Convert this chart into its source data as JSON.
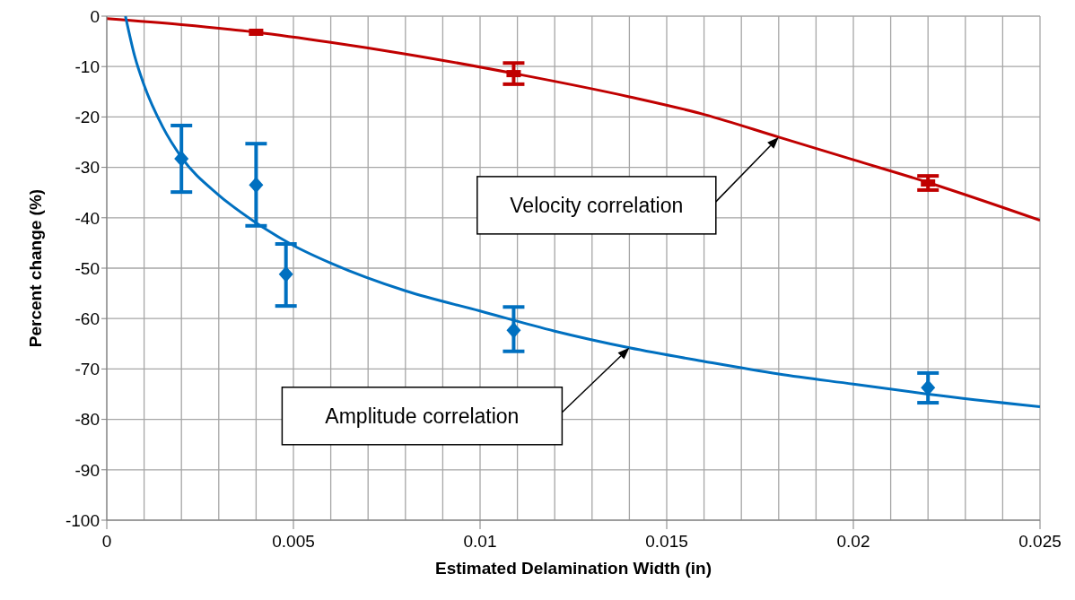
{
  "chart_data": {
    "type": "scatter",
    "xlabel": "Estimated Delamination Width (in)",
    "ylabel": "Percent change (%)",
    "xlim": [
      0,
      0.025
    ],
    "ylim": [
      -100,
      0
    ],
    "xticks": [
      0,
      {
        "value": 0.001,
        "label": null
      },
      {
        "value": 0.002,
        "label": null
      },
      {
        "value": 0.003,
        "label": null
      },
      {
        "value": 0.004,
        "label": null
      },
      0.005,
      {
        "value": 0.006,
        "label": null
      },
      {
        "value": 0.007,
        "label": null
      },
      {
        "value": 0.008,
        "label": null
      },
      {
        "value": 0.009,
        "label": null
      },
      0.01,
      {
        "value": 0.011,
        "label": null
      },
      {
        "value": 0.012,
        "label": null
      },
      {
        "value": 0.013,
        "label": null
      },
      {
        "value": 0.014,
        "label": null
      },
      0.015,
      {
        "value": 0.016,
        "label": null
      },
      {
        "value": 0.017,
        "label": null
      },
      {
        "value": 0.018,
        "label": null
      },
      {
        "value": 0.019,
        "label": null
      },
      0.02,
      {
        "value": 0.021,
        "label": null
      },
      {
        "value": 0.022,
        "label": null
      },
      {
        "value": 0.023,
        "label": null
      },
      {
        "value": 0.024,
        "label": null
      },
      0.025
    ],
    "yticks": [
      0,
      -10,
      -20,
      -30,
      -40,
      -50,
      -60,
      -70,
      -80,
      -90,
      -100
    ],
    "grid": true,
    "legend": false,
    "series": [
      {
        "type": "line",
        "color": "#c00000",
        "marker": "none",
        "x": [
          0,
          0.002,
          0.004,
          0.006,
          0.008,
          0.011,
          0.014,
          0.016,
          0.018,
          0.02,
          0.022,
          0.025
        ],
        "values": [
          -0.5,
          -1.7,
          -3.2,
          -5.2,
          -7.5,
          -11.5,
          -16,
          -19.5,
          -24,
          -28.5,
          -33,
          -40.5
        ]
      },
      {
        "type": "line",
        "color": "#0070c0",
        "marker": "none",
        "x": [
          0.0005,
          0.00075,
          0.001,
          0.0015,
          0.002,
          0.003,
          0.004,
          0.005,
          0.006,
          0.008,
          0.01,
          0.012,
          0.014,
          0.016,
          0.018,
          0.02,
          0.022,
          0.025
        ],
        "values": [
          0,
          -8,
          -13.7,
          -22,
          -28,
          -35.5,
          -41,
          -45.5,
          -49,
          -54.5,
          -58.5,
          -62.5,
          -65.8,
          -68.5,
          -71,
          -73,
          -75,
          -77.5
        ]
      },
      {
        "color": "#c00000",
        "marker": "square",
        "x": [
          0.004,
          0.0109,
          0.022
        ],
        "values": [
          -3.2,
          -11.4,
          -33.1
        ],
        "errors": [
          null,
          [
            -13.5,
            -9.3
          ],
          [
            -34.5,
            -31.7
          ]
        ]
      },
      {
        "color": "#0070c0",
        "marker": "diamond",
        "x": [
          0.002,
          0.004,
          0.0048,
          0.0109,
          0.022
        ],
        "values": [
          -28.3,
          -33.5,
          -51.2,
          -62.3,
          -73.7
        ],
        "errors": [
          [
            -34.9,
            -21.7
          ],
          [
            -41.6,
            -25.3
          ],
          [
            -57.5,
            -45.2
          ],
          [
            -66.5,
            -57.7
          ],
          [
            -76.7,
            -70.8
          ]
        ]
      }
    ],
    "annotations": [
      "Velocity correlation",
      "Amplitude correlation"
    ]
  }
}
